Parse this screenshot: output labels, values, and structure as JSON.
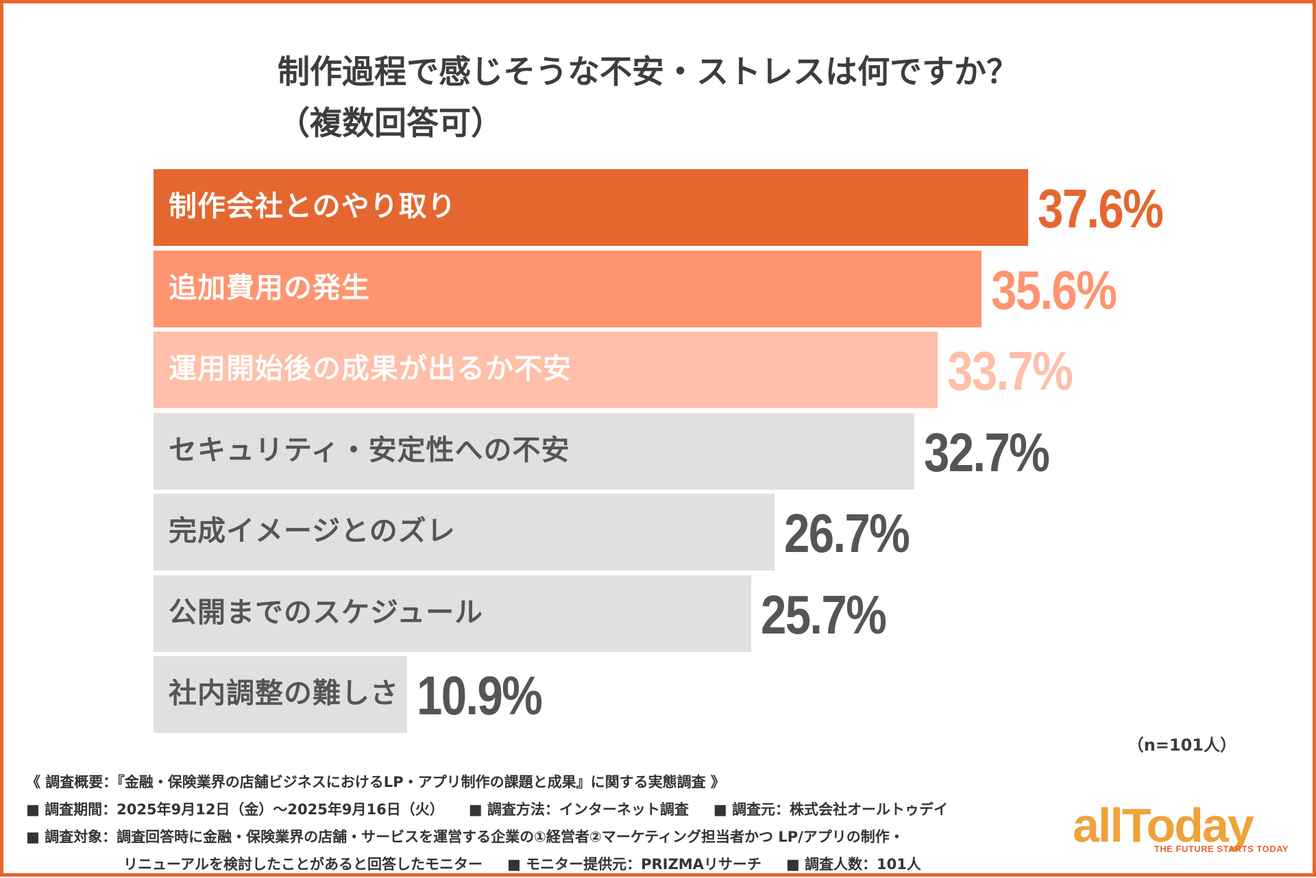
{
  "title": {
    "line1": "制作過程で感じそうな不安・ストレスは何ですか？",
    "line2": "（複数回答可）"
  },
  "chart_data": {
    "type": "bar",
    "orientation": "horizontal",
    "title": "制作過程で感じそうな不安・ストレスは何ですか？（複数回答可）",
    "unit": "%",
    "xlim": [
      0,
      37.6
    ],
    "categories": [
      "制作会社とのやり取り",
      "追加費用の発生",
      "運用開始後の成果が出るか不安",
      "セキュリティ・安定性への不安",
      "完成イメージとのズレ",
      "公開までのスケジュール",
      "社内調整の難しさ"
    ],
    "values": [
      37.6,
      35.6,
      33.7,
      32.7,
      26.7,
      25.7,
      10.9
    ],
    "value_labels": [
      "37.6%",
      "35.6%",
      "33.7%",
      "32.7%",
      "26.7%",
      "25.7%",
      "10.9%"
    ],
    "bar_colors": [
      "#e4672f",
      "#ff9470",
      "#ffbfa8",
      "#e0e0e0",
      "#e0e0e0",
      "#e0e0e0",
      "#e0e0e0"
    ],
    "label_colors": [
      "#ffffff",
      "#ffffff",
      "#ffffff",
      "#555555",
      "#555555",
      "#555555",
      "#555555"
    ],
    "value_colors": [
      "#e4672f",
      "#ff9470",
      "#ffbfa8",
      "#555555",
      "#555555",
      "#555555",
      "#555555"
    ],
    "sample_note": "（n=101人）"
  },
  "footer": {
    "line1": "《 調査概要：『金融・保険業界の店舗ビジネスにおけるLP・アプリ制作の課題と成果』に関する実態調査 》",
    "period": "■ 調査期間：2025年9月12日（金）〜2025年9月16日（火）",
    "method": "■ 調査方法：インターネット調査",
    "source": "■ 調査元：株式会社オールトゥデイ",
    "target1": "■ 調査対象：調査回答時に金融・保険業界の店舗・サービスを運営する企業の①経営者②マーケティング担当者かつ LP/アプリの制作・",
    "target2": "リニューアルを検討したことがあると回答したモニター",
    "monitor": "■ モニター提供元：PRIZMAリサーチ",
    "count": "■ 調査人数：101人"
  },
  "logo": {
    "wordmark": "allToday",
    "tagline": "THE FUTURE STARTS TODAY"
  },
  "colors": {
    "frame": "#e4672f",
    "title": "#3d3d3d"
  }
}
